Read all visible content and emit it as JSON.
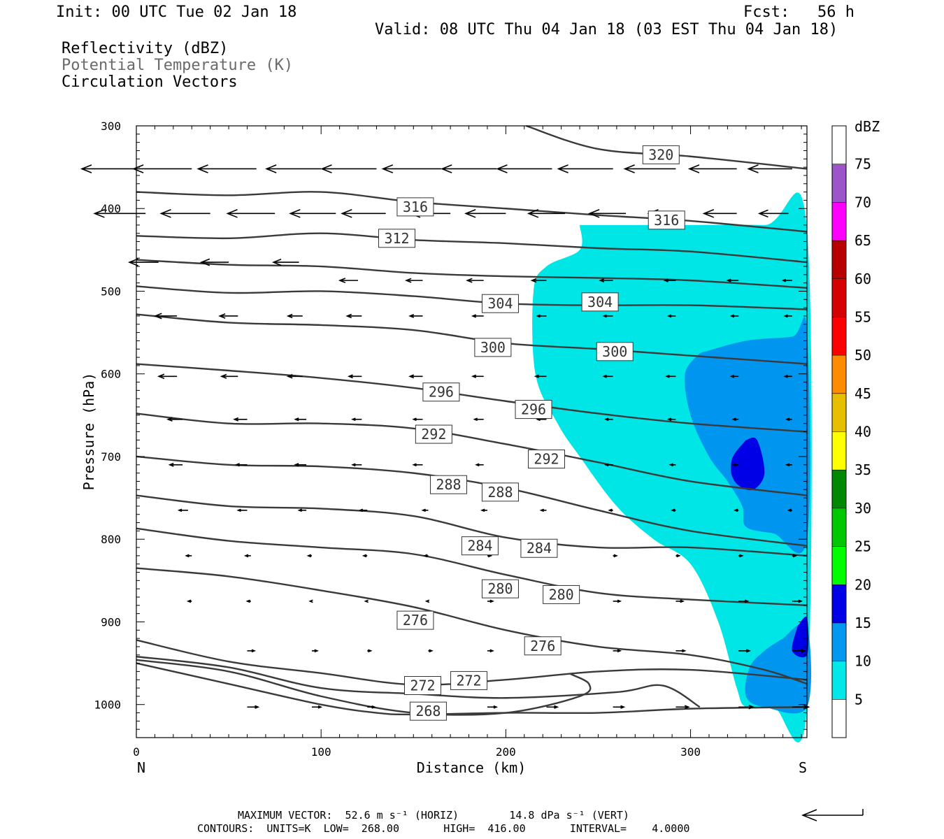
{
  "header": {
    "init": "Init: 00 UTC Tue 02 Jan 18",
    "fcst": "Fcst:   56 h",
    "valid": "Valid: 08 UTC Thu 04 Jan 18 (03 EST Thu 04 Jan 18)",
    "fields": [
      "Reflectivity (dBZ)",
      "Potential Temperature (K)",
      "Circulation Vectors"
    ]
  },
  "footer": {
    "max_vector": "MAXIMUM VECTOR:  52.6 m s⁻¹ (HORIZ)        14.8 dPa s⁻¹ (VERT)",
    "contours": "CONTOURS:  UNITS=K  LOW=  268.00       HIGH=  416.00       INTERVAL=    4.0000"
  },
  "colors": {
    "contour": "#3a3a3a",
    "dbz_5": "#00e6e6",
    "dbz_10": "#0096f0",
    "dbz_15": "#0000e6",
    "legend": [
      "#00e8e8",
      "#0098f0",
      "#0000e8",
      "#00fe00",
      "#00c800",
      "#008800",
      "#ffff00",
      "#e6be00",
      "#ff8c00",
      "#ff0000",
      "#d60000",
      "#b80000",
      "#ff00ff",
      "#9c55c8"
    ]
  },
  "chart_data": {
    "type": "cross-section",
    "xlabel": "Distance (km)",
    "ylabel": "Pressure (hPa)",
    "xlim": [
      0,
      363
    ],
    "ylim": [
      300,
      1040
    ],
    "x_ticks": [
      0,
      100,
      200,
      300
    ],
    "y_ticks": [
      300,
      400,
      500,
      600,
      700,
      800,
      900,
      1000
    ],
    "x_end_labels": {
      "left": "N",
      "right": "S"
    },
    "colorbar": {
      "unit": "dBZ",
      "levels": [
        5,
        10,
        15,
        20,
        25,
        30,
        35,
        40,
        45,
        50,
        55,
        60,
        65,
        70,
        75
      ]
    },
    "contour_labels": [
      {
        "text": "320",
        "x": 284,
        "p": 335
      },
      {
        "text": "316",
        "x": 151,
        "p": 398
      },
      {
        "text": "316",
        "x": 287,
        "p": 414
      },
      {
        "text": "312",
        "x": 141,
        "p": 436
      },
      {
        "text": "304",
        "x": 197,
        "p": 515
      },
      {
        "text": "304",
        "x": 251,
        "p": 513
      },
      {
        "text": "300",
        "x": 193,
        "p": 568
      },
      {
        "text": "300",
        "x": 259,
        "p": 573
      },
      {
        "text": "296",
        "x": 165,
        "p": 622
      },
      {
        "text": "296",
        "x": 215,
        "p": 643
      },
      {
        "text": "292",
        "x": 161,
        "p": 673
      },
      {
        "text": "292",
        "x": 222,
        "p": 703
      },
      {
        "text": "288",
        "x": 169,
        "p": 734
      },
      {
        "text": "288",
        "x": 197,
        "p": 743
      },
      {
        "text": "284",
        "x": 186,
        "p": 808
      },
      {
        "text": "284",
        "x": 218,
        "p": 811
      },
      {
        "text": "280",
        "x": 197,
        "p": 860
      },
      {
        "text": "280",
        "x": 230,
        "p": 867
      },
      {
        "text": "276",
        "x": 151,
        "p": 898
      },
      {
        "text": "276",
        "x": 220,
        "p": 929
      },
      {
        "text": "272",
        "x": 180,
        "p": 971
      },
      {
        "text": "272",
        "x": 155,
        "p": 977
      },
      {
        "text": "268",
        "x": 158,
        "p": 1008
      }
    ],
    "isentropes": [
      {
        "x": [
          211,
          250,
          300,
          363
        ],
        "p": [
          300,
          328,
          337,
          352
        ]
      },
      {
        "x": [
          0,
          50,
          100,
          150,
          200,
          250,
          300,
          363
        ],
        "p": [
          380,
          384,
          380,
          392,
          400,
          408,
          415,
          428
        ]
      },
      {
        "x": [
          0,
          50,
          100,
          150,
          200,
          250,
          300,
          363
        ],
        "p": [
          433,
          436,
          430,
          438,
          442,
          448,
          452,
          465
        ]
      },
      {
        "x": [
          0,
          50,
          100,
          150,
          200,
          250,
          300,
          363
        ],
        "p": [
          462,
          468,
          470,
          478,
          482,
          484,
          487,
          496
        ]
      },
      {
        "x": [
          0,
          50,
          100,
          150,
          200,
          250,
          300,
          363
        ],
        "p": [
          494,
          502,
          500,
          506,
          515,
          517,
          517,
          522
        ]
      },
      {
        "x": [
          0,
          50,
          100,
          150,
          200,
          250,
          300,
          363
        ],
        "p": [
          528,
          538,
          541,
          547,
          563,
          570,
          578,
          588
        ]
      },
      {
        "x": [
          0,
          50,
          100,
          150,
          200,
          250,
          300,
          363
        ],
        "p": [
          588,
          596,
          605,
          617,
          633,
          648,
          660,
          670
        ]
      },
      {
        "x": [
          0,
          50,
          100,
          150,
          200,
          250,
          300,
          363
        ],
        "p": [
          648,
          660,
          660,
          666,
          685,
          707,
          730,
          747
        ]
      },
      {
        "x": [
          0,
          50,
          100,
          150,
          200,
          250,
          300,
          363
        ],
        "p": [
          700,
          710,
          712,
          720,
          738,
          765,
          790,
          808
        ]
      },
      {
        "x": [
          0,
          50,
          100,
          150,
          200,
          250,
          300,
          363
        ],
        "p": [
          747,
          760,
          763,
          772,
          798,
          810,
          810,
          820
        ]
      },
      {
        "x": [
          0,
          50,
          100,
          150,
          200,
          250,
          300,
          363
        ],
        "p": [
          787,
          802,
          810,
          818,
          843,
          865,
          873,
          880
        ]
      },
      {
        "x": [
          0,
          50,
          100,
          150,
          200,
          250,
          300,
          340,
          363
        ],
        "p": [
          835,
          845,
          862,
          882,
          910,
          930,
          940,
          958,
          975
        ]
      },
      {
        "x": [
          0,
          50,
          100,
          150,
          200,
          250,
          300,
          363
        ],
        "p": [
          922,
          948,
          962,
          976,
          970,
          960,
          958,
          970
        ]
      },
      {
        "x": [
          0,
          50,
          100,
          150,
          200,
          260,
          285,
          305
        ],
        "p": [
          942,
          955,
          980,
          987,
          992,
          985,
          977,
          1003
        ]
      },
      {
        "x": [
          0,
          50,
          100,
          150,
          200,
          240,
          245,
          235
        ],
        "p": [
          946,
          960,
          990,
          1010,
          1010,
          990,
          975,
          963
        ]
      },
      {
        "x": [
          0,
          50,
          100,
          130,
          150,
          200,
          250,
          300,
          363
        ],
        "p": [
          950,
          975,
          1000,
          1010,
          1012,
          1010,
          1010,
          1005,
          1003
        ]
      }
    ],
    "reflectivity_regions": [
      {
        "dbz": 5,
        "x": [
          240,
          290,
          340,
          363,
          363,
          345,
          330,
          325,
          315,
          300,
          280,
          260,
          240,
          228,
          216,
          215,
          222,
          240
        ],
        "p": [
          420,
          420,
          420,
          425,
          1003,
          1003,
          1003,
          980,
          900,
          830,
          800,
          760,
          700,
          660,
          600,
          500,
          470,
          450
        ]
      },
      {
        "dbz": 10,
        "x": [
          305,
          330,
          355,
          363,
          363,
          345,
          330,
          328,
          320,
          310,
          300,
          297
        ],
        "p": [
          575,
          560,
          555,
          548,
          800,
          793,
          785,
          760,
          730,
          700,
          650,
          600
        ]
      },
      {
        "dbz": 10,
        "x": [
          350,
          363,
          363,
          340,
          330,
          332,
          340
        ],
        "p": [
          920,
          905,
          1003,
          1003,
          990,
          955,
          935
        ]
      },
      {
        "dbz": 15,
        "x": [
          330,
          336,
          340,
          334,
          326,
          322,
          323
        ],
        "p": [
          680,
          680,
          720,
          740,
          735,
          720,
          700
        ]
      },
      {
        "dbz": 15,
        "x": [
          358,
          363,
          363,
          355
        ],
        "p": [
          905,
          895,
          940,
          935
        ]
      }
    ],
    "vectors": [
      {
        "x": [
          0,
          30,
          65,
          100,
          130,
          165,
          195,
          225,
          258,
          292,
          325,
          355
        ],
        "p": 352,
        "u": [
          -30,
          -32,
          -32,
          -30,
          -30,
          -32,
          -30,
          -30,
          -30,
          -28,
          -26,
          -24
        ]
      },
      {
        "x": [
          5,
          40,
          75,
          108,
          135,
          170,
          200,
          232,
          265,
          295,
          325,
          353
        ],
        "p": 406,
        "u": [
          -28,
          -27,
          -26,
          -25,
          -24,
          -22,
          -22,
          -20,
          -20,
          -18,
          -18,
          -16
        ]
      },
      {
        "x": [
          12,
          50,
          88
        ],
        "p": 465,
        "u": [
          -16,
          -15,
          -14
        ]
      },
      {
        "x": [
          120,
          155,
          188,
          222,
          258,
          292,
          326,
          355
        ],
        "p": 487,
        "u": [
          -10,
          -9,
          -9,
          -8,
          -7,
          -6,
          -6,
          -5
        ]
      },
      {
        "x": [
          22,
          55,
          90,
          122,
          155,
          188,
          222,
          258,
          292,
          326,
          355
        ],
        "p": 530,
        "u": [
          -12,
          -10,
          -8,
          -8,
          -7,
          -6,
          -5,
          -5,
          -4,
          -4,
          -4
        ]
      },
      {
        "x": [
          22,
          55,
          90,
          122,
          155,
          188,
          222,
          258,
          292,
          326,
          355
        ],
        "p": 603,
        "u": [
          -10,
          -9,
          -8,
          -7,
          -7,
          -6,
          -6,
          -5,
          -5,
          -4,
          -4
        ]
      },
      {
        "x": [
          25,
          60,
          92,
          122,
          155,
          188,
          222,
          258,
          292,
          326,
          355
        ],
        "p": 655,
        "u": [
          -8,
          -7,
          -6,
          -5,
          -5,
          -5,
          -5,
          -4,
          -4,
          -3,
          -3
        ]
      },
      {
        "x": [
          25,
          60,
          92,
          122,
          155,
          188,
          222,
          258,
          292,
          326,
          355
        ],
        "p": 710,
        "u": [
          -7,
          -6,
          -6,
          -5,
          -5,
          -4,
          -4,
          -4,
          -3,
          -3,
          -3
        ]
      },
      {
        "x": [
          28,
          60,
          92,
          125,
          158,
          190,
          222,
          258,
          292,
          326,
          355
        ],
        "p": 765,
        "u": [
          -5,
          -5,
          -4,
          -4,
          -3,
          -3,
          -3,
          -2,
          -2,
          -2,
          -2
        ]
      },
      {
        "x": [
          30,
          62,
          95,
          125,
          158,
          190,
          222,
          258,
          292,
          326,
          355
        ],
        "p": 820,
        "u": [
          -3,
          -3,
          -2,
          -2,
          -2,
          2,
          2,
          2,
          2,
          2,
          2
        ]
      },
      {
        "x": [
          30,
          62,
          95,
          125,
          158,
          190,
          222,
          258,
          292,
          326,
          355
        ],
        "p": 875,
        "u": [
          -2,
          -2,
          -1,
          -1,
          -1,
          3,
          3,
          4,
          4,
          5,
          5
        ]
      },
      {
        "x": [
          60,
          95,
          125,
          158,
          190,
          222,
          258,
          292,
          326,
          355
        ],
        "p": 935,
        "u": [
          4,
          3,
          2,
          2,
          3,
          4,
          4,
          5,
          6,
          7
        ]
      },
      {
        "x": [
          60,
          95,
          125,
          158,
          190,
          222,
          258,
          292,
          326,
          355
        ],
        "p": 1003,
        "u": [
          6,
          5,
          4,
          4,
          5,
          6,
          6,
          7,
          8,
          9
        ]
      }
    ],
    "reference_vector": {
      "u": 52.6,
      "w": 14.8
    }
  }
}
